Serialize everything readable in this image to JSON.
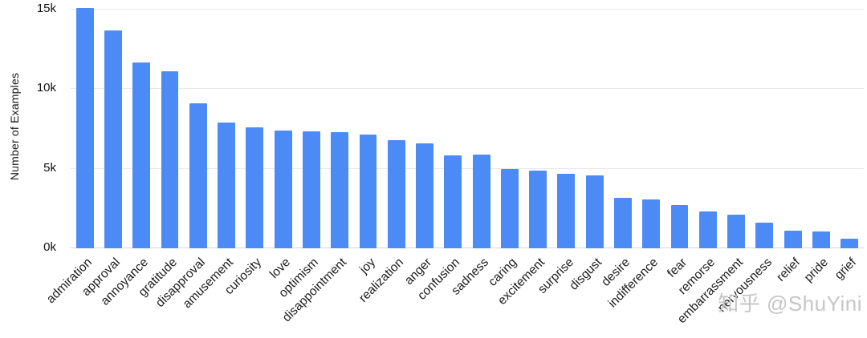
{
  "chart_data": {
    "type": "bar",
    "title": "",
    "xlabel": "",
    "ylabel": "Number of Examples",
    "categories": [
      "admiration",
      "approval",
      "annoyance",
      "gratitude",
      "disapproval",
      "amusement",
      "curiosity",
      "love",
      "optimism",
      "disappointment",
      "joy",
      "realization",
      "anger",
      "confusion",
      "sadness",
      "caring",
      "excitement",
      "surprise",
      "disgust",
      "desire",
      "indifference",
      "fear",
      "remorse",
      "embarrassment",
      "nervousness",
      "relief",
      "pride",
      "grief"
    ],
    "values": [
      15100,
      13700,
      11700,
      11100,
      9100,
      7900,
      7600,
      7400,
      7350,
      7300,
      7150,
      6800,
      6600,
      5850,
      5900,
      5000,
      4900,
      4700,
      4600,
      3150,
      3050,
      2700,
      2300,
      2100,
      1600,
      1100,
      1050,
      600
    ],
    "ylim": [
      0,
      15500
    ],
    "yticks": [
      {
        "label": "0k",
        "value": 0
      },
      {
        "label": "5k",
        "value": 5000
      },
      {
        "label": "10k",
        "value": 10000
      },
      {
        "label": "15k",
        "value": 15000
      }
    ],
    "bar_color": "#4c8bf5",
    "grid": "horizontal",
    "legend": "none"
  },
  "watermark": {
    "text": "知乎 @ShuYini"
  }
}
